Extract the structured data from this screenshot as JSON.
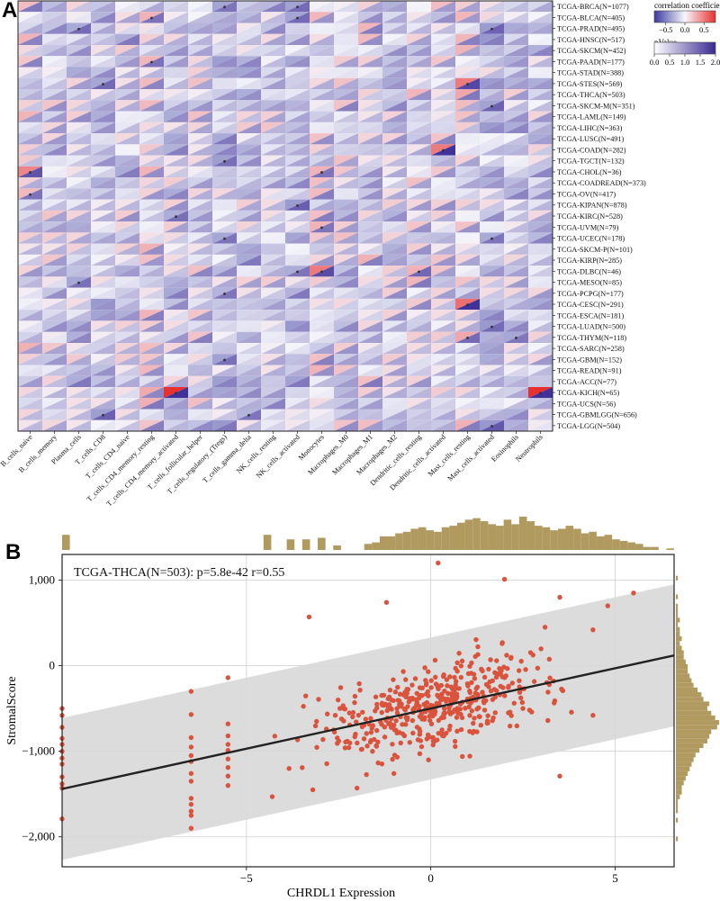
{
  "figure": {
    "panel_a_label": "A",
    "panel_b_label": "B"
  },
  "chart_data": [
    {
      "type": "heatmap",
      "panel": "A",
      "title": "",
      "cell_style": "split triangles: upper-left = correlation coefficient, lower-right = pValue; dot marks significance",
      "columns": [
        "B_cells_naive",
        "B_cells_memory",
        "Plasma_cells",
        "T_cells_CD8",
        "T_cells_CD4_naive",
        "T_cells_CD4_memory_resting",
        "T_cells_CD4_memory_activated",
        "T_cells_follicular_helper",
        "T_cells_regulatory_(Tregs)",
        "T_cells_gamma_delta",
        "NK_cells_resting",
        "NK_cells_activated",
        "Monocytes",
        "Macrophages_M0",
        "Macrophages_M1",
        "Macrophages_M2",
        "Dendritic_cells_resting",
        "Dendritic_cells_activated",
        "Mast_cells_resting",
        "Mast_cells_activated",
        "Eosinophils",
        "Neutrophils"
      ],
      "rows": [
        "TCGA-BRCA(N=1077)",
        "TCGA-BLCA(N=405)",
        "TCGA-PRAD(N=495)",
        "TCGA-HNSC(N=517)",
        "TCGA-SKCM(N=452)",
        "TCGA-PAAD(N=177)",
        "TCGA-STAD(N=388)",
        "TCGA-STES(N=569)",
        "TCGA-THCA(N=503)",
        "TCGA-SKCM-M(N=351)",
        "TCGA-LAML(N=149)",
        "TCGA-LIHC(N=363)",
        "TCGA-LUSC(N=491)",
        "TCGA-COAD(N=282)",
        "TCGA-TGCT(N=132)",
        "TCGA-CHOL(N=36)",
        "TCGA-COADREAD(N=373)",
        "TCGA-OV(N=417)",
        "TCGA-KIPAN(N=878)",
        "TCGA-KIRC(N=528)",
        "TCGA-UVM(N=79)",
        "TCGA-UCEC(N=178)",
        "TCGA-SKCM-P(N=101)",
        "TCGA-KIRP(N=285)",
        "TCGA-DLBC(N=46)",
        "TCGA-MESO(N=85)",
        "TCGA-PCPG(N=177)",
        "TCGA-CESC(N=291)",
        "TCGA-ESCA(N=181)",
        "TCGA-LUAD(N=500)",
        "TCGA-THYM(N=118)",
        "TCGA-SARC(N=258)",
        "TCGA-GBM(N=152)",
        "TCGA-READ(N=91)",
        "TCGA-ACC(N=77)",
        "TCGA-KICH(N=65)",
        "TCGA-UCS(N=56)",
        "TCGA-GBMLGG(N=656)",
        "TCGA-LGG(N=504)"
      ],
      "legend": {
        "corr_title": "correlation coefficient",
        "corr_ticks": [
          "−0.5",
          "0.0",
          "0.5"
        ],
        "corr_range": [
          -0.8,
          0.8
        ],
        "pval_title": "pValue",
        "pval_ticks": [
          "0.0",
          "0.5",
          "1.0",
          "1.5",
          "2.0"
        ],
        "pval_range": [
          0,
          2
        ]
      },
      "colors": {
        "negative": "#4a4aa8",
        "positive": "#e8312f",
        "neutral": "#f4f4fb",
        "pvalue": "#40329a"
      },
      "data_note": "cell values estimated per row/column from figure shading"
    },
    {
      "type": "scatter",
      "panel": "B",
      "annotation": "TCGA-THCA(N=503): p=5.8e-42 r=0.55",
      "xlabel": "CHRDL1 Expression",
      "ylabel": "StromalScore",
      "xlim": [
        -10,
        6.6
      ],
      "ylim": [
        -2350,
        1300
      ],
      "xticks": [
        -5,
        0,
        5
      ],
      "xtick_labels": [
        "−5",
        "0",
        "5"
      ],
      "yticks": [
        -2000,
        -1000,
        0,
        1000
      ],
      "ytick_labels": [
        "−2,000",
        "−1,000",
        "0",
        "1,000"
      ],
      "regression": {
        "slope": 94,
        "intercept": -500
      },
      "band_halfwidth": 830,
      "n_points": 503,
      "point_color": "#d9533d",
      "band_color": "#d8d8d8",
      "hist_color": "#b09a60",
      "points": [
        [
          -10,
          -500
        ],
        [
          -10,
          -580
        ],
        [
          -10,
          -720
        ],
        [
          -10,
          -850
        ],
        [
          -10,
          -920
        ],
        [
          -10,
          -1000
        ],
        [
          -10,
          -1080
        ],
        [
          -10,
          -1150
        ],
        [
          -10,
          -1300
        ],
        [
          -10,
          -1380
        ],
        [
          -10,
          -1430
        ],
        [
          -10,
          -1790
        ],
        [
          -6.5,
          -300
        ],
        [
          -6.5,
          -570
        ],
        [
          -6.5,
          -840
        ],
        [
          -6.5,
          -950
        ],
        [
          -6.5,
          -1050
        ],
        [
          -6.5,
          -1120
        ],
        [
          -6.5,
          -1260
        ],
        [
          -6.5,
          -1350
        ],
        [
          -6.5,
          -1550
        ],
        [
          -6.5,
          -1620
        ],
        [
          -6.5,
          -1700
        ],
        [
          -6.5,
          -1750
        ],
        [
          -6.5,
          -1900
        ],
        [
          -5.5,
          -140
        ],
        [
          -5.5,
          -680
        ],
        [
          -5.5,
          -820
        ],
        [
          -5.5,
          -920
        ],
        [
          -5.5,
          -990
        ],
        [
          -5.5,
          -1090
        ],
        [
          -5.5,
          -1190
        ],
        [
          -5.5,
          -1290
        ],
        [
          -5.5,
          -1400
        ],
        [
          -3.3,
          570
        ],
        [
          -1.2,
          740
        ],
        [
          0.2,
          1200
        ],
        [
          2.0,
          1010
        ],
        [
          3.5,
          800
        ],
        [
          4.8,
          700
        ],
        [
          5.5,
          850
        ],
        [
          4.4,
          420
        ],
        [
          3.1,
          450
        ],
        [
          -3.2,
          -1450
        ],
        [
          -2.0,
          -1430
        ],
        [
          -1.0,
          -1260
        ],
        [
          2.5,
          -500
        ],
        [
          3.5,
          -1290
        ],
        [
          4.4,
          -580
        ],
        [
          -4.3,
          -1530
        ]
      ],
      "x_hist_counts": [
        10,
        0,
        0,
        0,
        0,
        0,
        0,
        0,
        0,
        0,
        0,
        0,
        0,
        0,
        0,
        0,
        0,
        0,
        0,
        0,
        0,
        0,
        0,
        0,
        0,
        0,
        10,
        0,
        0,
        7,
        0,
        7,
        0,
        8,
        0,
        3,
        0,
        0,
        0,
        4,
        5,
        9,
        9,
        11,
        12,
        14,
        15,
        13,
        12,
        15,
        16,
        18,
        20,
        21,
        19,
        17,
        16,
        20,
        17,
        22,
        19,
        16,
        15,
        13,
        14,
        16,
        14,
        11,
        12,
        9,
        10,
        7,
        6,
        5,
        4,
        2,
        2,
        0,
        1
      ],
      "y_hist_counts": [
        1,
        0,
        0,
        0,
        1,
        0,
        1,
        1,
        1,
        2,
        1,
        2,
        2,
        3,
        2,
        3,
        4,
        4,
        5,
        6,
        6,
        7,
        8,
        9,
        11,
        13,
        14,
        17,
        16,
        18,
        20,
        22,
        21,
        18,
        17,
        16,
        14,
        12,
        10,
        9,
        8,
        7,
        6,
        5,
        4,
        3,
        3,
        2,
        1,
        1,
        1,
        0,
        1,
        0,
        0,
        0,
        1
      ]
    }
  ]
}
